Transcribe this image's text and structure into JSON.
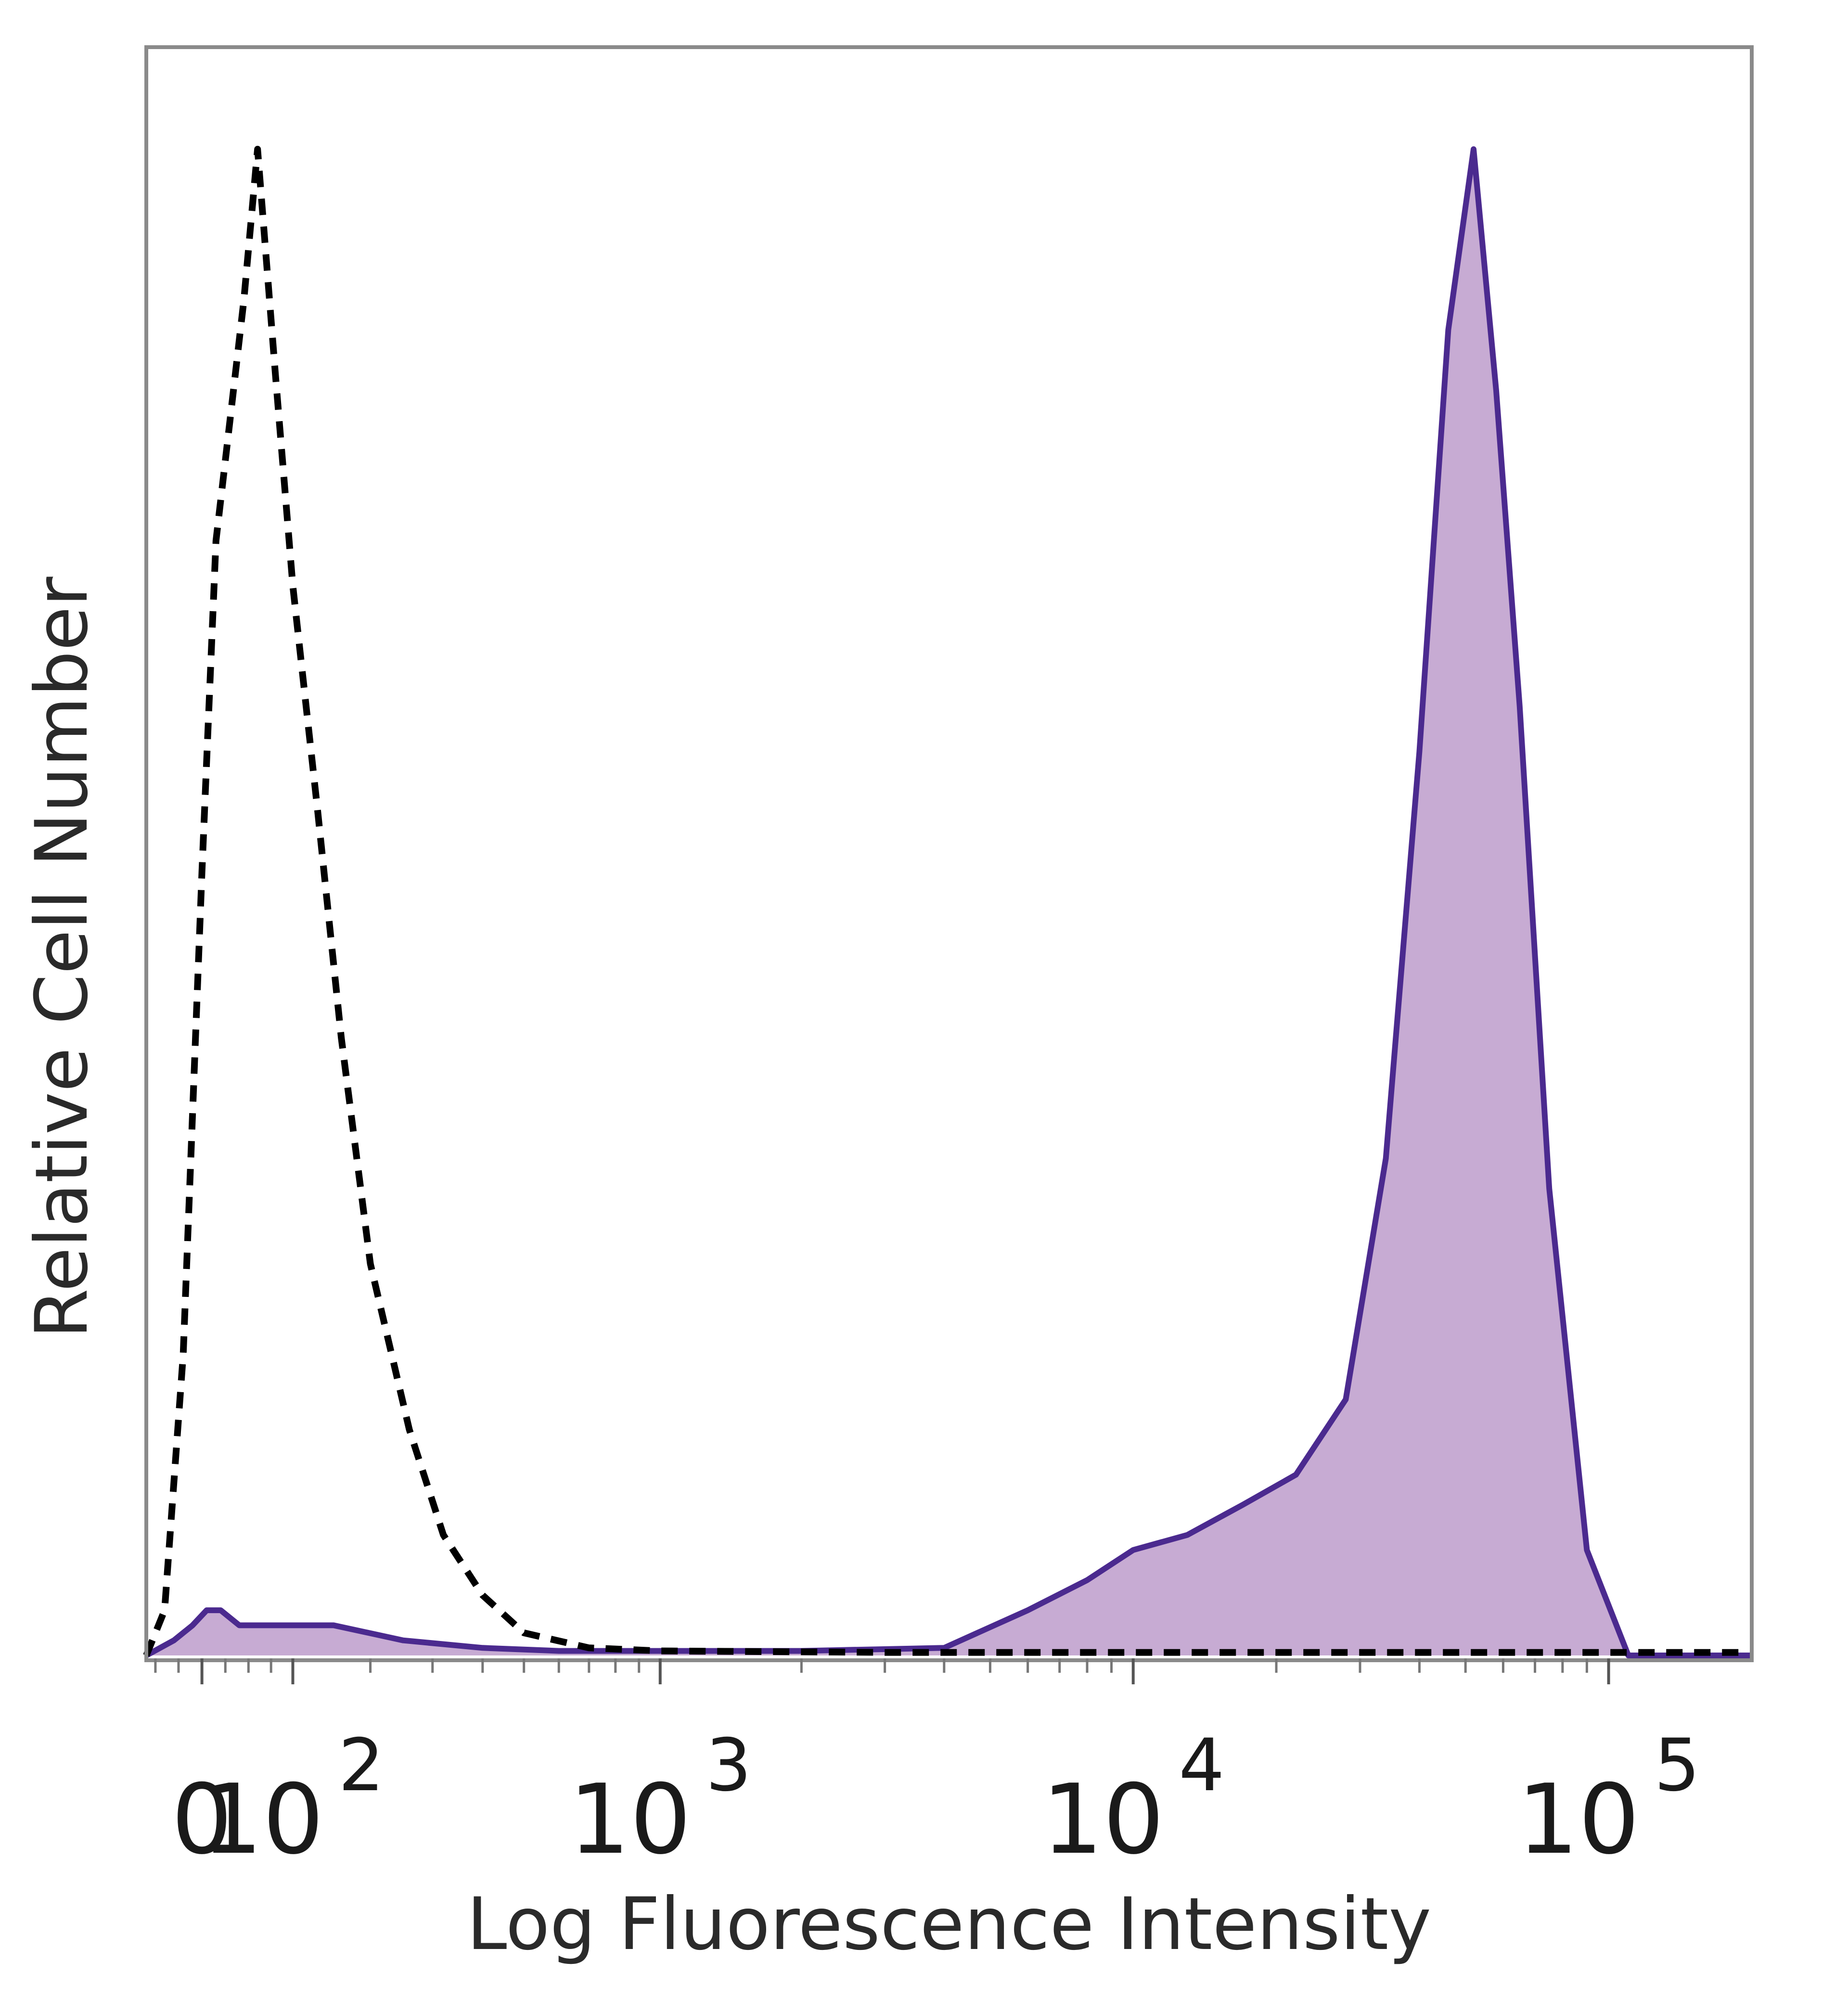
{
  "chart_data": {
    "type": "area",
    "xlabel": "Log Fluorescence Intensity",
    "ylabel": "Relative Cell Number",
    "x_scale": "biexponential",
    "xlim": [
      -60,
      200000
    ],
    "ylim": [
      0,
      100
    ],
    "grid": false,
    "tick_labels": [
      {
        "x": 0,
        "base": "0",
        "exp": ""
      },
      {
        "x": 100,
        "base": "10",
        "exp": "2"
      },
      {
        "x": 1000,
        "base": "10",
        "exp": "3"
      },
      {
        "x": 10000,
        "base": "10",
        "exp": "4"
      },
      {
        "x": 100000,
        "base": "10",
        "exp": "5"
      }
    ],
    "series": [
      {
        "style": "dashed",
        "color": "#000000",
        "filled": false,
        "x": [
          -60,
          -40,
          -20,
          0,
          15,
          30,
          45,
          60,
          80,
          100,
          130,
          160,
          200,
          260,
          320,
          400,
          500,
          700,
          1000,
          3000,
          10000,
          100000,
          200000
        ],
        "y": [
          0,
          3,
          20,
          52,
          74,
          82,
          90,
          100,
          85,
          71,
          56,
          41,
          26,
          15,
          8,
          4,
          1.5,
          0.5,
          0.3,
          0.2,
          0.2,
          0.2,
          0.2
        ]
      },
      {
        "style": "solid",
        "color": "#4b2a8f",
        "fill": "#c7abd3",
        "filled": true,
        "x": [
          -60,
          -30,
          -10,
          5,
          20,
          40,
          80,
          150,
          250,
          400,
          600,
          1000,
          2000,
          4000,
          6000,
          8000,
          10000,
          13000,
          17000,
          22000,
          28000,
          34000,
          40000,
          46000,
          52000,
          58000,
          65000,
          75000,
          90000,
          110000,
          130000,
          200000
        ],
        "y": [
          0,
          1,
          2,
          3,
          3,
          2,
          2,
          2,
          1,
          0.5,
          0.3,
          0.3,
          0.3,
          0.5,
          3,
          5,
          7,
          8,
          10,
          12,
          17,
          33,
          60,
          88,
          100,
          84,
          63,
          31,
          7,
          0,
          0,
          0
        ]
      }
    ]
  }
}
